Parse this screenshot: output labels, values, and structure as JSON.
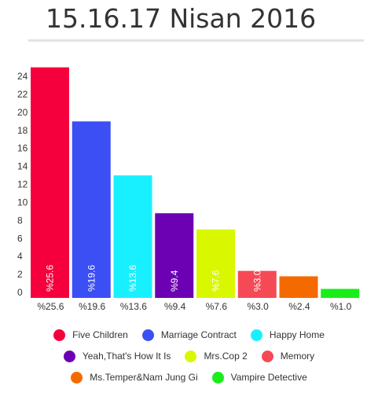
{
  "page": {
    "title": "15.16.17 Nisan 2016"
  },
  "chart_data": {
    "type": "bar",
    "title": "15.16.17 Nisan 2016",
    "xlabel": "",
    "ylabel": "",
    "ylim": [
      0,
      24
    ],
    "yticks": [
      0,
      2,
      4,
      6,
      8,
      10,
      12,
      14,
      16,
      18,
      20,
      22,
      24
    ],
    "grid": false,
    "legend_position": "bottom",
    "categories": [
      "%25.6",
      "%19.6",
      "%13.6",
      "%9.4",
      "%7.6",
      "%3.0",
      "%2.4",
      "%1.0"
    ],
    "values": [
      25.6,
      19.6,
      13.6,
      9.4,
      7.6,
      3.0,
      2.4,
      1.0
    ],
    "bar_labels": [
      "%25.6",
      "%19.6",
      "%13.6",
      "%9.4",
      "%7.6",
      "%3.0",
      "",
      ""
    ],
    "series_names": [
      "Five Children",
      "Marriage Contract",
      "Happy Home",
      "Yeah,That's How It Is",
      "Mrs.Cop 2",
      "Memory",
      "Ms.Temper&Nam Jung Gi",
      "Vampire Detective"
    ],
    "colors": [
      "#f5003c",
      "#3b4ff5",
      "#19f0ff",
      "#6c00b3",
      "#d9f800",
      "#f54a55",
      "#f56a00",
      "#19ee19"
    ]
  }
}
